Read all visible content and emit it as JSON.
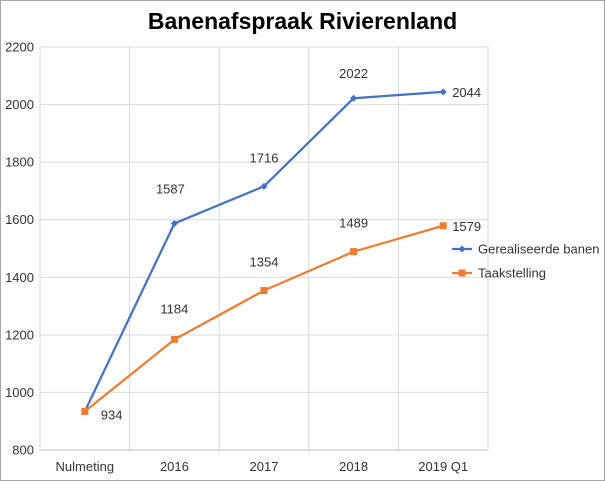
{
  "chart_data": {
    "type": "line",
    "title": "Banenafspraak Rivierenland",
    "categories": [
      "Nulmeting",
      "2016",
      "2017",
      "2018",
      "2019 Q1"
    ],
    "yticks": [
      "800",
      "1000",
      "1200",
      "1400",
      "1600",
      "1800",
      "2000",
      "2200"
    ],
    "ylim": [
      800,
      2200
    ],
    "grid": true,
    "legend_position": "right",
    "series": [
      {
        "name": "Gerealiseerde banen",
        "color": "#4472c4",
        "marker": "diamond",
        "values": [
          934,
          1587,
          1716,
          2022,
          2044
        ],
        "labels": [
          "",
          "1587",
          "1716",
          "2022",
          "2044"
        ]
      },
      {
        "name": "Taakstelling",
        "color": "#ed7d31",
        "marker": "square",
        "values": [
          934,
          1184,
          1354,
          1489,
          1579
        ],
        "labels": [
          "934",
          "1184",
          "1354",
          "1489",
          "1579"
        ]
      }
    ]
  }
}
